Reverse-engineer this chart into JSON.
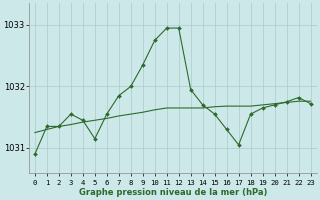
{
  "hours": [
    0,
    1,
    2,
    3,
    4,
    5,
    6,
    7,
    8,
    9,
    10,
    11,
    12,
    13,
    14,
    15,
    16,
    17,
    18,
    19,
    20,
    21,
    22,
    23
  ],
  "pressure": [
    1030.9,
    1031.35,
    1031.35,
    1031.55,
    1031.45,
    1031.15,
    1031.55,
    1031.85,
    1032.0,
    1032.35,
    1032.75,
    1032.95,
    1032.95,
    1031.95,
    1031.7,
    1031.55,
    1031.3,
    1031.05,
    1031.55,
    1031.65,
    1031.7,
    1031.75,
    1031.82,
    1031.72
  ],
  "trend": [
    1031.25,
    1031.3,
    1031.35,
    1031.38,
    1031.42,
    1031.45,
    1031.48,
    1031.52,
    1031.55,
    1031.58,
    1031.62,
    1031.65,
    1031.65,
    1031.65,
    1031.65,
    1031.67,
    1031.68,
    1031.68,
    1031.68,
    1031.7,
    1031.72,
    1031.74,
    1031.76,
    1031.76
  ],
  "line_color": "#2d6a2d",
  "bg_color": "#cce8e8",
  "grid_color": "#aacccc",
  "ylabel_left_ticks": [
    1031,
    1032,
    1033
  ],
  "ylim": [
    1030.6,
    1033.35
  ],
  "xlim": [
    -0.5,
    23.5
  ],
  "xlabel": "Graphe pression niveau de la mer (hPa)",
  "marker": "D",
  "markersize": 2.0,
  "linewidth": 0.8
}
